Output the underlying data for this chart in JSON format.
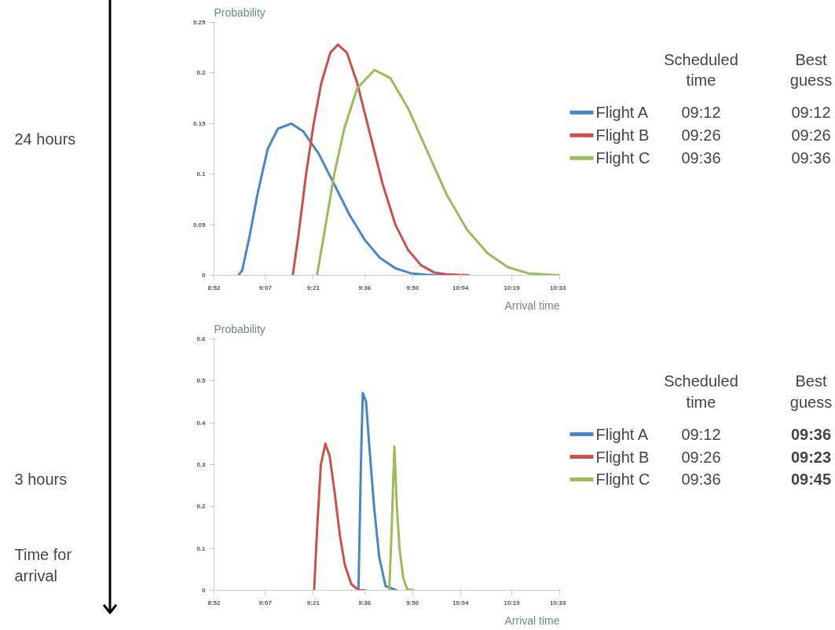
{
  "chart_data": [
    {
      "type": "line",
      "xlabel": "Arrival time",
      "ylabel": "Probability",
      "legend": "right",
      "grid": false,
      "marker": "none",
      "line_style": "solid",
      "xlim": [
        8.8667,
        10.55
      ],
      "xticks": [
        {
          "value": 8.8667,
          "label": "8:52"
        },
        {
          "value": 9.1167,
          "label": "9:07"
        },
        {
          "value": 9.35,
          "label": "9:21"
        },
        {
          "value": 9.6,
          "label": "9:36"
        },
        {
          "value": 9.8333,
          "label": "9:50"
        },
        {
          "value": 10.0667,
          "label": "10:04"
        },
        {
          "value": 10.3167,
          "label": "10:19"
        },
        {
          "value": 10.55,
          "label": "10:33"
        }
      ],
      "ylim": [
        0,
        0.25
      ],
      "yticks": [
        0,
        0.05,
        0.1,
        0.15,
        0.2,
        0.25
      ],
      "series": [
        {
          "name": "Flight A",
          "color": "#4a86c5",
          "x": [
            8.985,
            9.004,
            9.041,
            9.078,
            9.128,
            9.178,
            9.243,
            9.302,
            9.377,
            9.452,
            9.526,
            9.601,
            9.676,
            9.75,
            9.825,
            9.9,
            9.974
          ],
          "values": [
            0,
            0.005,
            0.04,
            0.08,
            0.125,
            0.145,
            0.15,
            0.142,
            0.12,
            0.09,
            0.06,
            0.035,
            0.017,
            0.007,
            0.002,
            0.0005,
            0
          ]
        },
        {
          "name": "Flight B",
          "color": "#c9504c",
          "x": [
            9.25,
            9.278,
            9.315,
            9.352,
            9.389,
            9.433,
            9.47,
            9.514,
            9.564,
            9.626,
            9.688,
            9.75,
            9.812,
            9.875,
            9.937,
            9.999,
            10.111
          ],
          "values": [
            0,
            0.04,
            0.1,
            0.15,
            0.19,
            0.22,
            0.228,
            0.22,
            0.19,
            0.14,
            0.09,
            0.05,
            0.025,
            0.01,
            0.003,
            0.001,
            0
          ]
        },
        {
          "name": "Flight C",
          "color": "#9bbb59",
          "x": [
            9.368,
            9.402,
            9.452,
            9.501,
            9.564,
            9.648,
            9.725,
            9.812,
            9.9,
            9.999,
            10.099,
            10.198,
            10.298,
            10.397,
            10.55
          ],
          "values": [
            0,
            0.04,
            0.1,
            0.145,
            0.185,
            0.203,
            0.195,
            0.165,
            0.125,
            0.08,
            0.045,
            0.022,
            0.008,
            0.002,
            0
          ]
        }
      ],
      "annotations": [
        "Scheduled time",
        "Best guess",
        "09:12",
        "09:12",
        "09:26",
        "09:26",
        "09:36",
        "09:36",
        "24 hours"
      ]
    },
    {
      "type": "line",
      "xlabel": "Arrival time",
      "ylabel": "Probability",
      "legend": "right",
      "grid": false,
      "marker": "none",
      "line_style": "solid",
      "xlim": [
        8.8667,
        10.55
      ],
      "xticks": [
        {
          "value": 8.8667,
          "label": "8:52"
        },
        {
          "value": 9.1167,
          "label": "9:07"
        },
        {
          "value": 9.35,
          "label": "9:21"
        },
        {
          "value": 9.6,
          "label": "9:36"
        },
        {
          "value": 9.8333,
          "label": "9:50"
        },
        {
          "value": 10.0667,
          "label": "10:04"
        },
        {
          "value": 10.3167,
          "label": "10:19"
        },
        {
          "value": 10.55,
          "label": "10:33"
        }
      ],
      "ylim": [
        0,
        0.6
      ],
      "yticks": [
        0,
        0.1,
        0.2,
        0.3,
        0.4,
        0.5,
        0.6
      ],
      "series": [
        {
          "name": "Flight A",
          "color": "#4a86c5",
          "x": [
            9.57,
            9.582,
            9.591,
            9.607,
            9.622,
            9.646,
            9.671,
            9.702,
            9.757
          ],
          "values": [
            0,
            0.3,
            0.471,
            0.45,
            0.35,
            0.2,
            0.08,
            0.01,
            0
          ]
        },
        {
          "name": "Flight B",
          "color": "#c9504c",
          "x": [
            9.354,
            9.369,
            9.387,
            9.409,
            9.43,
            9.455,
            9.48,
            9.504,
            9.535,
            9.572,
            9.609
          ],
          "values": [
            0,
            0.15,
            0.3,
            0.35,
            0.32,
            0.23,
            0.13,
            0.06,
            0.015,
            0,
            0
          ]
        },
        {
          "name": "Flight C",
          "color": "#9bbb59",
          "x": [
            9.72,
            9.732,
            9.745,
            9.757,
            9.77,
            9.788,
            9.807,
            9.844
          ],
          "values": [
            0,
            0.15,
            0.343,
            0.2,
            0.1,
            0.03,
            0.003,
            0
          ]
        }
      ],
      "annotations": [
        "Scheduled time",
        "Best guess",
        "09:12",
        "09:36",
        "09:26",
        "09:23",
        "09:36",
        "09:45",
        "3 hours",
        "Time for arrival"
      ]
    }
  ]
}
